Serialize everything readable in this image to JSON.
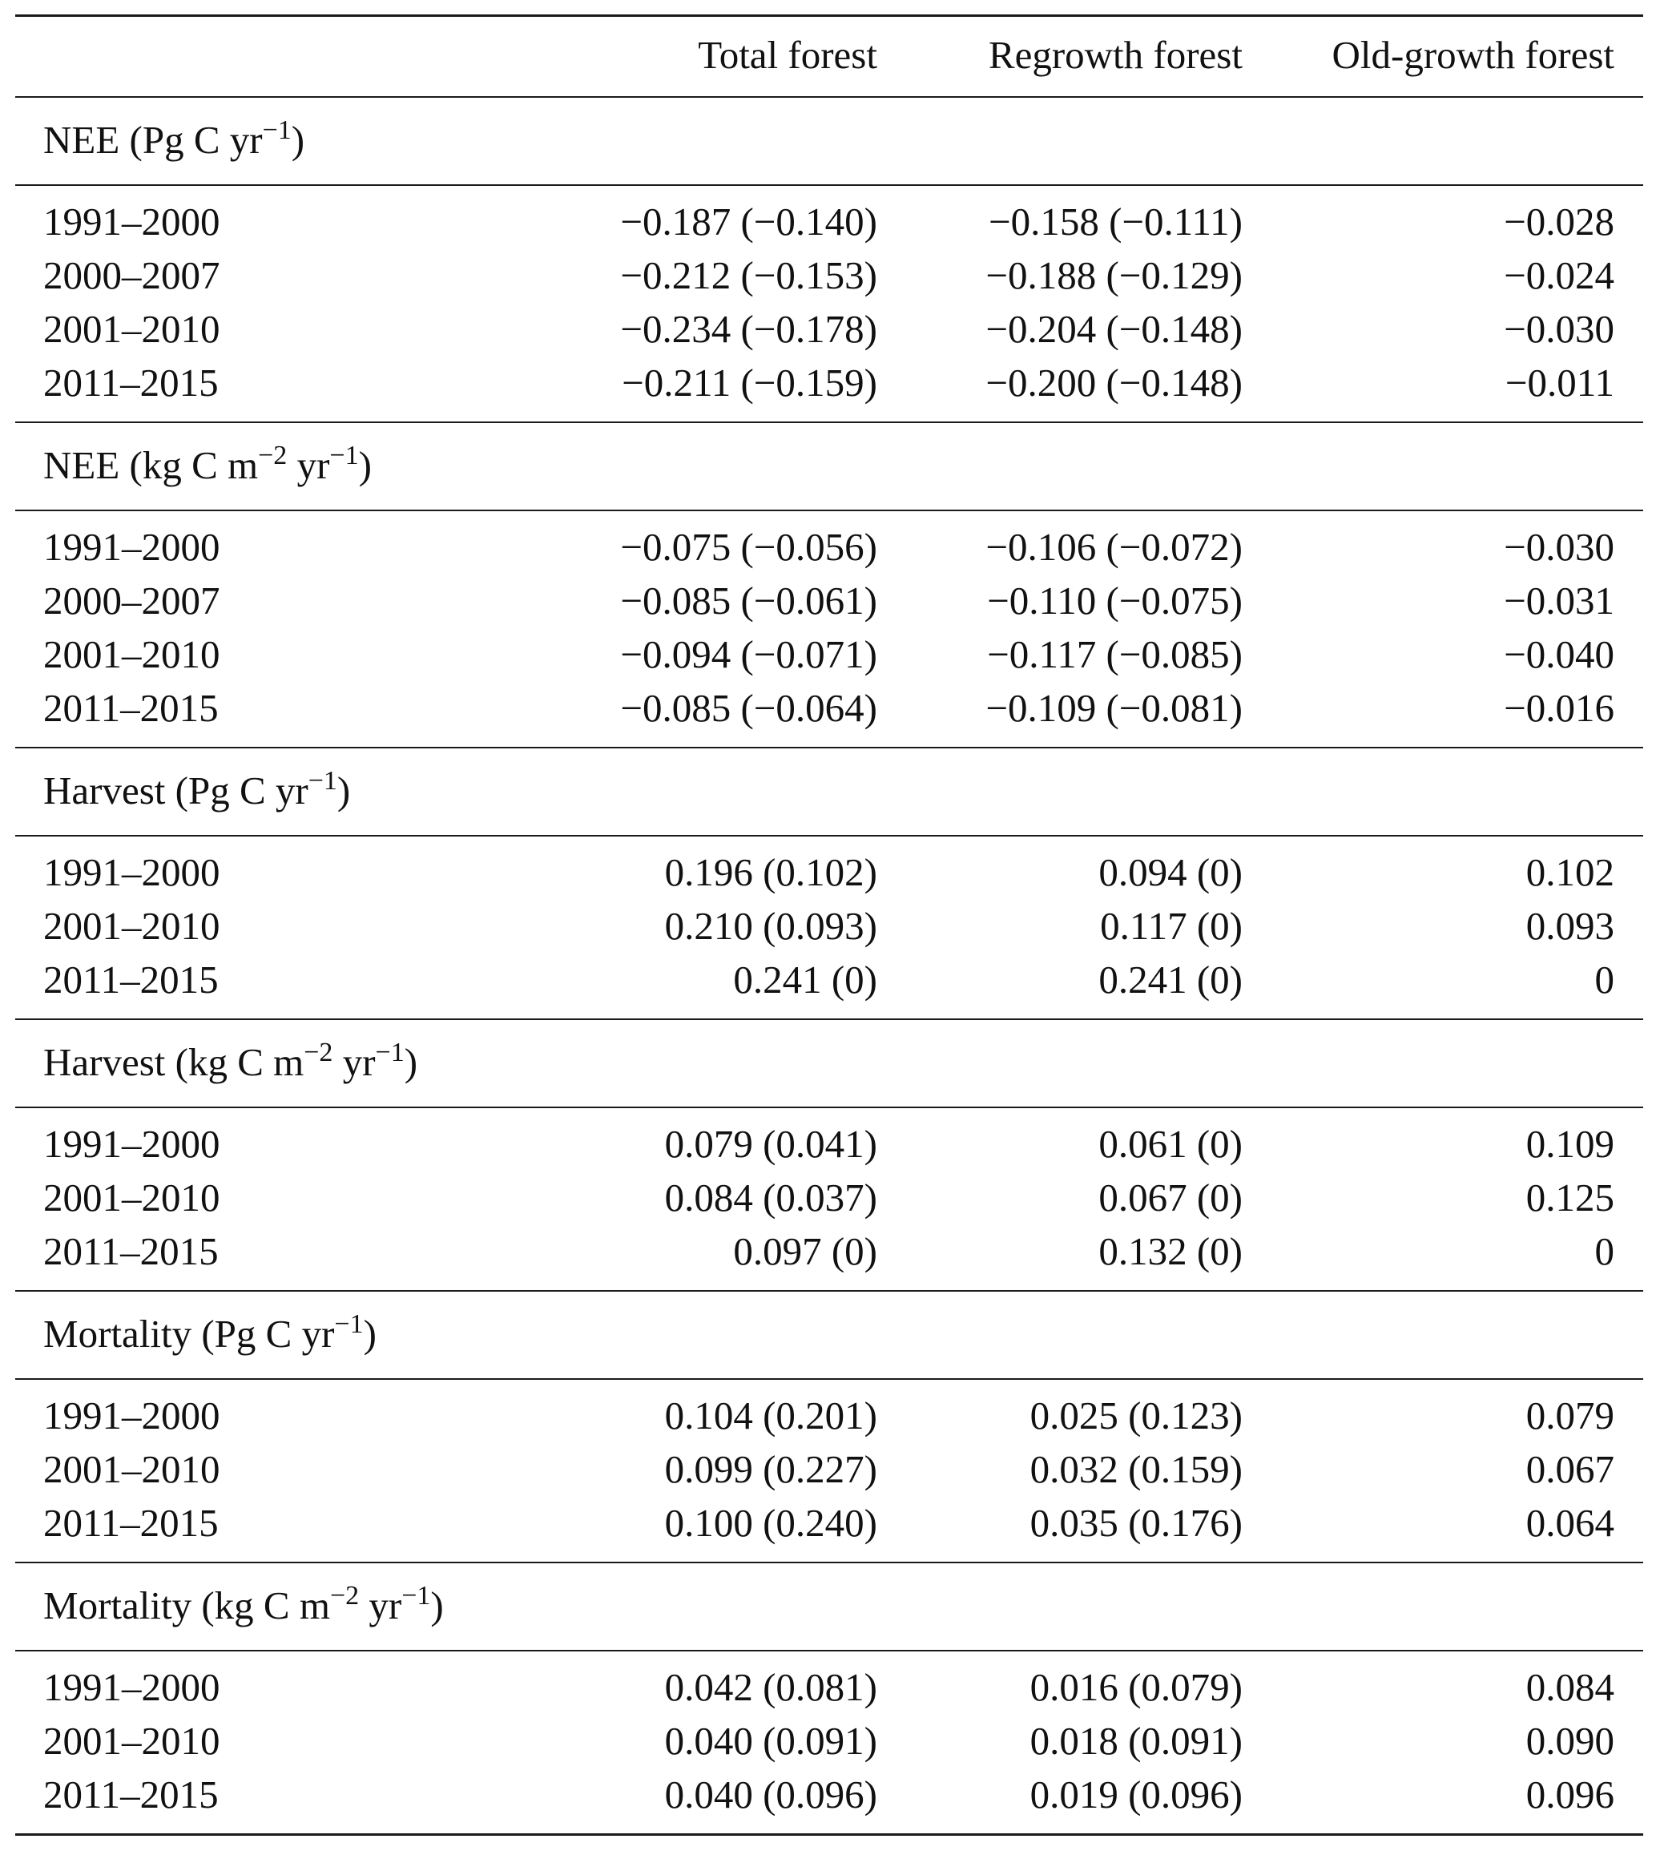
{
  "columns": [
    "",
    "Total forest",
    "Regrowth forest",
    "Old-growth forest"
  ],
  "sections": [
    {
      "label": {
        "pre": "NEE (Pg C yr",
        "sup1": "−1",
        "mid": "",
        "sup2": "",
        "post": ")"
      },
      "rows": [
        [
          "1991–2000",
          "−0.187 (−0.140)",
          "−0.158 (−0.111)",
          "−0.028"
        ],
        [
          "2000–2007",
          "−0.212 (−0.153)",
          "−0.188 (−0.129)",
          "−0.024"
        ],
        [
          "2001–2010",
          "−0.234 (−0.178)",
          "−0.204 (−0.148)",
          "−0.030"
        ],
        [
          "2011–2015",
          "−0.211 (−0.159)",
          "−0.200 (−0.148)",
          "−0.011"
        ]
      ]
    },
    {
      "label": {
        "pre": "NEE (kg C m",
        "sup1": "−2",
        "mid": " yr",
        "sup2": "−1",
        "post": ")"
      },
      "rows": [
        [
          "1991–2000",
          "−0.075 (−0.056)",
          "−0.106 (−0.072)",
          "−0.030"
        ],
        [
          "2000–2007",
          "−0.085 (−0.061)",
          "−0.110 (−0.075)",
          "−0.031"
        ],
        [
          "2001–2010",
          "−0.094 (−0.071)",
          "−0.117 (−0.085)",
          "−0.040"
        ],
        [
          "2011–2015",
          "−0.085 (−0.064)",
          "−0.109 (−0.081)",
          "−0.016"
        ]
      ]
    },
    {
      "label": {
        "pre": "Harvest (Pg C yr",
        "sup1": "−1",
        "mid": "",
        "sup2": "",
        "post": ")"
      },
      "rows": [
        [
          "1991–2000",
          "0.196 (0.102)",
          "0.094 (0)",
          "0.102"
        ],
        [
          "2001–2010",
          "0.210 (0.093)",
          "0.117 (0)",
          "0.093"
        ],
        [
          "2011–2015",
          "0.241 (0)",
          "0.241 (0)",
          "0"
        ]
      ]
    },
    {
      "label": {
        "pre": "Harvest (kg C m",
        "sup1": "−2",
        "mid": " yr",
        "sup2": "−1",
        "post": ")"
      },
      "rows": [
        [
          "1991–2000",
          "0.079 (0.041)",
          "0.061 (0)",
          "0.109"
        ],
        [
          "2001–2010",
          "0.084 (0.037)",
          "0.067 (0)",
          "0.125"
        ],
        [
          "2011–2015",
          "0.097 (0)",
          "0.132 (0)",
          "0"
        ]
      ]
    },
    {
      "label": {
        "pre": "Mortality (Pg C yr",
        "sup1": "−1",
        "mid": "",
        "sup2": "",
        "post": ")"
      },
      "rows": [
        [
          "1991–2000",
          "0.104 (0.201)",
          "0.025 (0.123)",
          "0.079"
        ],
        [
          "2001–2010",
          "0.099 (0.227)",
          "0.032 (0.159)",
          "0.067"
        ],
        [
          "2011–2015",
          "0.100 (0.240)",
          "0.035 (0.176)",
          "0.064"
        ]
      ]
    },
    {
      "label": {
        "pre": "Mortality (kg C m",
        "sup1": "−2",
        "mid": " yr",
        "sup2": "−1",
        "post": ")"
      },
      "rows": [
        [
          "1991–2000",
          "0.042 (0.081)",
          "0.016 (0.079)",
          "0.084"
        ],
        [
          "2001–2010",
          "0.040 (0.091)",
          "0.018 (0.091)",
          "0.090"
        ],
        [
          "2011–2015",
          "0.040 (0.096)",
          "0.019 (0.096)",
          "0.096"
        ]
      ]
    }
  ]
}
